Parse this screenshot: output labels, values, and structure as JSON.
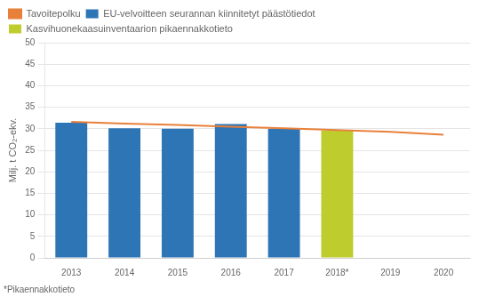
{
  "chart_data": {
    "type": "bar",
    "categories": [
      "2013",
      "2014",
      "2015",
      "2016",
      "2017",
      "2018*",
      "2019",
      "2020"
    ],
    "ylabel": "Milj. t CO₂-ekv.",
    "ylim": [
      0,
      50
    ],
    "yticks": [
      0,
      5,
      10,
      15,
      20,
      25,
      30,
      35,
      40,
      45,
      50
    ],
    "grid": true,
    "legend": "top",
    "footnote": "*Pikaennakkotieto",
    "series": [
      {
        "name": "EU-velvoitteen seurannan kiinnitetyt päästötiedot",
        "color": "#2E75B6",
        "values": [
          31.4,
          30.1,
          30.0,
          31.1,
          30.0,
          null,
          null,
          null
        ]
      },
      {
        "name": "Kasvihuonekaasuinventaarion pikaennakkotieto",
        "color": "#BECC2E",
        "values": [
          null,
          null,
          null,
          null,
          null,
          29.6,
          null,
          null
        ]
      },
      {
        "name": "Tavoitepolku",
        "type": "line",
        "color": "#E8803A",
        "values": [
          31.6,
          31.2,
          30.9,
          30.5,
          30.1,
          29.7,
          29.3,
          28.6
        ]
      }
    ]
  }
}
